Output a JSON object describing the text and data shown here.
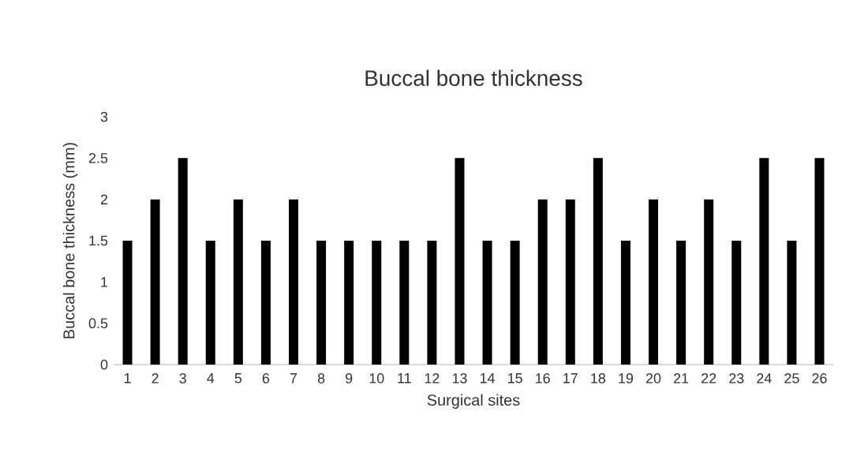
{
  "chart_data": {
    "type": "bar",
    "title": "Buccal bone thickness",
    "xlabel": "Surgical sites",
    "ylabel": "Buccal bone thickness (mm)",
    "categories": [
      "1",
      "2",
      "3",
      "4",
      "5",
      "6",
      "7",
      "8",
      "9",
      "10",
      "11",
      "12",
      "13",
      "14",
      "15",
      "16",
      "17",
      "18",
      "19",
      "20",
      "21",
      "22",
      "23",
      "24",
      "25",
      "26"
    ],
    "values": [
      1.5,
      2,
      2.5,
      1.5,
      2,
      1.5,
      2,
      1.5,
      1.5,
      1.5,
      1.5,
      1.5,
      2.5,
      1.5,
      1.5,
      2,
      2,
      2.5,
      1.5,
      2,
      1.5,
      2,
      1.5,
      2.5,
      1.5,
      2.5
    ],
    "color": "#000000",
    "ylim": [
      0,
      3
    ],
    "yticks": [
      0,
      0.5,
      1,
      1.5,
      2,
      2.5,
      3
    ],
    "grid": false
  }
}
